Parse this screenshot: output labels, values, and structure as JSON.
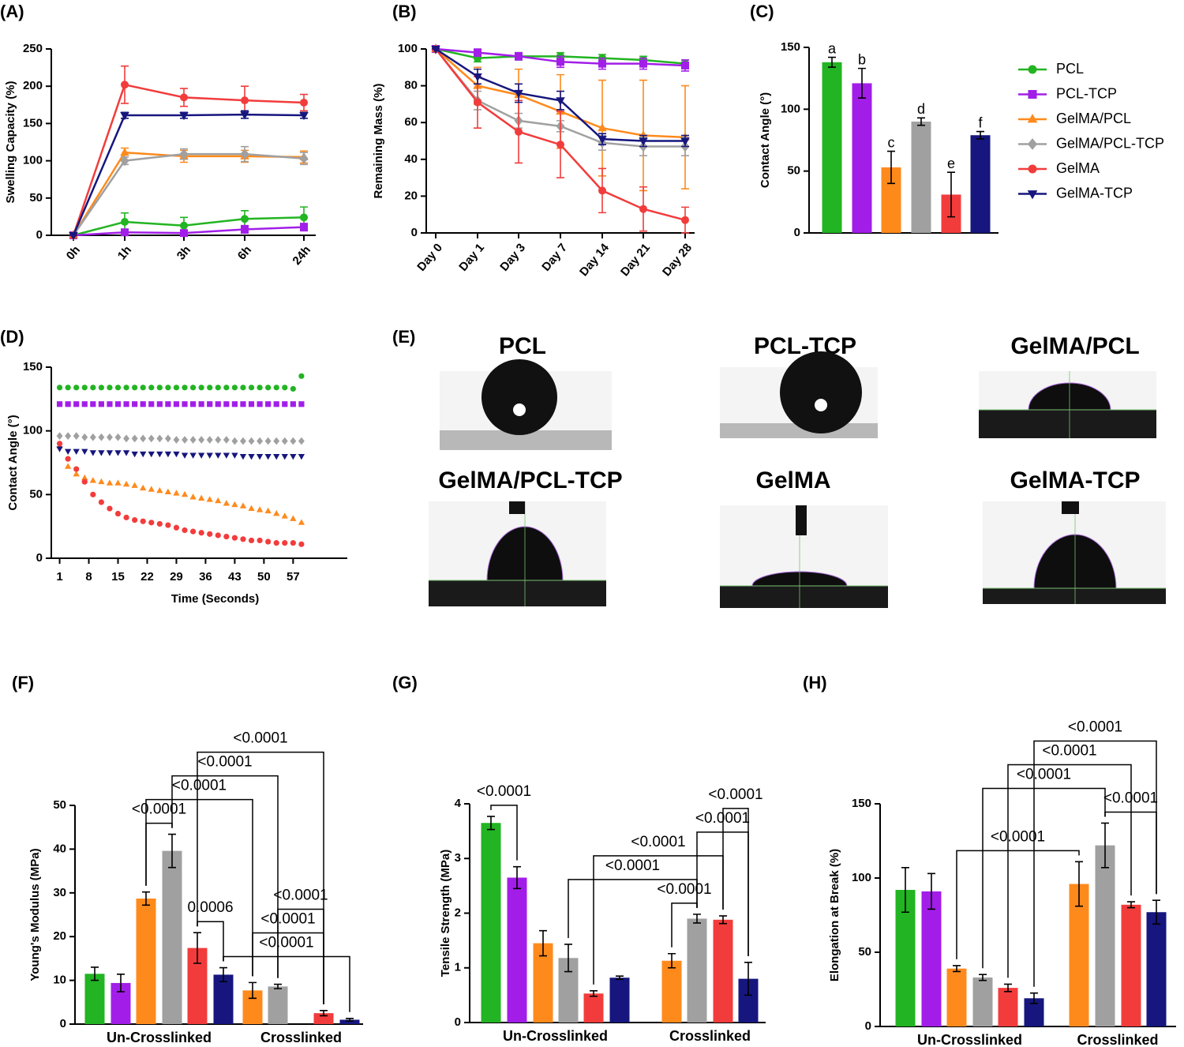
{
  "chart_data": [
    {
      "type": "line",
      "title": "(A)",
      "ylabel": "Swelling Capacity (%)",
      "categories": [
        "0h",
        "1h",
        "3h",
        "6h",
        "24h"
      ],
      "ylim": [
        0,
        250
      ],
      "yticks": [
        0,
        50,
        100,
        150,
        200,
        250
      ],
      "series": [
        {
          "name": "PCL",
          "color": "#22b422",
          "marker": "circle",
          "values": [
            0,
            18,
            13,
            22,
            24
          ],
          "errors": [
            0,
            12,
            11,
            11,
            14
          ]
        },
        {
          "name": "PCL-TCP",
          "color": "#a21ee8",
          "marker": "square",
          "values": [
            0,
            4,
            3,
            8,
            11
          ],
          "errors": [
            0,
            3,
            3,
            5,
            5
          ]
        },
        {
          "name": "GelMA/PCL",
          "color": "#ff8a1c",
          "marker": "triangle",
          "values": [
            0,
            111,
            106,
            106,
            105
          ],
          "errors": [
            0,
            6,
            8,
            8,
            8
          ]
        },
        {
          "name": "GelMA/PCL-TCP",
          "color": "#a0a0a0",
          "marker": "diamond",
          "values": [
            0,
            100,
            109,
            109,
            103
          ],
          "errors": [
            0,
            5,
            7,
            10,
            8
          ]
        },
        {
          "name": "GelMA",
          "color": "#f23c3c",
          "marker": "circle",
          "values": [
            0,
            202,
            185,
            181,
            178
          ],
          "errors": [
            0,
            25,
            12,
            19,
            11
          ]
        },
        {
          "name": "GelMA-TCP",
          "color": "#16167e",
          "marker": "triangle-down",
          "values": [
            0,
            161,
            161,
            162,
            161
          ],
          "errors": [
            0,
            4,
            4,
            5,
            4
          ]
        }
      ]
    },
    {
      "type": "line",
      "title": "(B)",
      "ylabel": "Remaining Mass (%)",
      "categories": [
        "Day 0",
        "Day 1",
        "Day 3",
        "Day 7",
        "Day 14",
        "Day 21",
        "Day 28"
      ],
      "ylim": [
        0,
        100
      ],
      "yticks": [
        0,
        20,
        40,
        60,
        80,
        100
      ],
      "series": [
        {
          "color": "#22b422",
          "marker": "circle",
          "values": [
            100,
            95,
            96,
            96,
            95,
            94,
            92
          ],
          "errors": [
            0,
            2,
            2,
            2,
            2,
            2,
            2
          ]
        },
        {
          "color": "#a21ee8",
          "marker": "square",
          "values": [
            100,
            98,
            96,
            93,
            92,
            92,
            91
          ],
          "errors": [
            0,
            2,
            2,
            3,
            3,
            3,
            3
          ]
        },
        {
          "color": "#ff8a1c",
          "marker": "triangle",
          "values": [
            100,
            80,
            75,
            66,
            57,
            53,
            52
          ],
          "errors": [
            0,
            10,
            14,
            20,
            26,
            30,
            28
          ]
        },
        {
          "color": "#a0a0a0",
          "marker": "diamond",
          "values": [
            100,
            72,
            61,
            58,
            49,
            47,
            47
          ],
          "errors": [
            0,
            5,
            4,
            3,
            4,
            5,
            5
          ]
        },
        {
          "color": "#f23c3c",
          "marker": "circle",
          "values": [
            100,
            71,
            55,
            48,
            23,
            13,
            7
          ],
          "errors": [
            0,
            14,
            17,
            18,
            12,
            12,
            7
          ]
        },
        {
          "color": "#16167e",
          "marker": "triangle-down",
          "values": [
            100,
            85,
            76,
            72,
            51,
            50,
            50
          ],
          "errors": [
            0,
            4,
            5,
            5,
            3,
            3,
            3
          ]
        }
      ]
    },
    {
      "type": "bar",
      "title": "(C)",
      "ylabel": "Contact Angle (°)",
      "ylim": [
        0,
        150
      ],
      "yticks": [
        0,
        50,
        100,
        150
      ],
      "values": [
        138,
        121,
        53,
        90,
        31,
        79
      ],
      "errors": [
        4,
        12,
        13,
        3,
        18,
        3
      ],
      "colors": [
        "#22b422",
        "#a21ee8",
        "#ff8a1c",
        "#a0a0a0",
        "#f23c3c",
        "#16167e"
      ],
      "annotations": [
        "a",
        "b",
        "c",
        "d",
        "e",
        "f"
      ]
    },
    {
      "type": "scatter",
      "title": "(D)",
      "ylabel": "Contact Angle (°)",
      "xlabel": "Time (Seconds)",
      "x": [
        1,
        3,
        5,
        7,
        9,
        11,
        13,
        15,
        17,
        19,
        21,
        23,
        25,
        27,
        29,
        31,
        33,
        35,
        37,
        39,
        41,
        43,
        45,
        47,
        49,
        51,
        53,
        55,
        57,
        59
      ],
      "xlim": [
        -1,
        70
      ],
      "xticks": [
        1,
        8,
        15,
        22,
        29,
        36,
        43,
        50,
        57
      ],
      "ylim": [
        0,
        150
      ],
      "yticks": [
        0,
        50,
        100,
        150
      ],
      "series": [
        {
          "color": "#22b422",
          "marker": "circle",
          "values": [
            134,
            134,
            134,
            134,
            134,
            134,
            134,
            134,
            134,
            134,
            134,
            134,
            134,
            134,
            134,
            134,
            134,
            134,
            134,
            134,
            134,
            134,
            134,
            134,
            134,
            134,
            134,
            134,
            133,
            143
          ]
        },
        {
          "color": "#a21ee8",
          "marker": "square",
          "values": [
            121,
            121,
            121,
            121,
            121,
            121,
            121,
            121,
            121,
            121,
            121,
            121,
            121,
            121,
            121,
            121,
            121,
            121,
            121,
            121,
            121,
            121,
            121,
            121,
            121,
            121,
            121,
            121,
            121,
            121
          ]
        },
        {
          "color": "#ff8a1c",
          "marker": "triangle",
          "values": [
            88,
            72,
            66,
            63,
            61,
            60,
            59,
            59,
            58,
            57,
            55,
            54,
            53,
            52,
            51,
            50,
            48,
            47,
            46,
            45,
            43,
            42,
            41,
            39,
            38,
            37,
            35,
            33,
            31,
            28
          ]
        },
        {
          "color": "#a0a0a0",
          "marker": "diamond",
          "values": [
            96,
            96,
            96,
            95,
            95,
            95,
            95,
            95,
            94,
            94,
            94,
            94,
            94,
            94,
            93,
            93,
            93,
            93,
            93,
            93,
            93,
            92,
            92,
            92,
            92,
            92,
            92,
            92,
            92,
            92
          ]
        },
        {
          "color": "#f23c3c",
          "marker": "circle",
          "values": [
            90,
            78,
            70,
            60,
            50,
            44,
            39,
            35,
            32,
            30,
            29,
            28,
            27,
            26,
            24,
            22,
            21,
            20,
            19,
            18,
            17,
            16,
            15,
            14,
            14,
            13,
            12,
            12,
            12,
            11
          ]
        },
        {
          "color": "#16167e",
          "marker": "triangle-down",
          "values": [
            86,
            84,
            84,
            84,
            83,
            83,
            83,
            83,
            83,
            82,
            82,
            82,
            82,
            82,
            82,
            81,
            81,
            81,
            81,
            81,
            81,
            81,
            80,
            80,
            80,
            80,
            80,
            80,
            80,
            80
          ]
        }
      ]
    },
    {
      "type": "grouped_bar",
      "title": "(F)",
      "ylabel": "Young's Modulus (MPa)",
      "categories": [
        "Un-Crosslinked",
        "Crosslinked"
      ],
      "ylim": [
        0,
        50
      ],
      "yticks": [
        0,
        10,
        20,
        30,
        40,
        50
      ],
      "series": [
        {
          "color": "#22b422",
          "values": [
            11.5,
            null
          ],
          "errors": [
            1.5,
            null
          ]
        },
        {
          "color": "#a21ee8",
          "values": [
            9.4,
            null
          ],
          "errors": [
            2,
            null
          ]
        },
        {
          "color": "#ff8a1c",
          "values": [
            28.7,
            7.7
          ],
          "errors": [
            1.5,
            1.8
          ]
        },
        {
          "color": "#a0a0a0",
          "values": [
            39.6,
            8.6
          ],
          "errors": [
            3.8,
            0.5
          ]
        },
        {
          "color": "#f23c3c",
          "values": [
            17.4,
            2.5
          ],
          "errors": [
            3.5,
            0.6
          ]
        },
        {
          "color": "#16167e",
          "values": [
            11.3,
            1.0
          ],
          "errors": [
            1.6,
            0.3
          ]
        }
      ],
      "comparisons": [
        {
          "label": "<0.0001",
          "from": [
            5,
            0
          ],
          "to": [
            5,
            1
          ]
        },
        {
          "label": "0.0006",
          "from": [
            4,
            0
          ],
          "to": [
            5,
            0
          ]
        },
        {
          "label": "<0.0001",
          "from": [
            2,
            1
          ],
          "to": [
            4,
            1
          ]
        },
        {
          "label": "<0.0001",
          "from": [
            3,
            1
          ],
          "to": [
            4,
            1
          ]
        },
        {
          "label": "<0.0001",
          "from": [
            2,
            0
          ],
          "to": [
            3,
            0
          ]
        },
        {
          "label": "<0.0001",
          "from": [
            2,
            0
          ],
          "to": [
            2,
            1
          ]
        },
        {
          "label": "<0.0001",
          "from": [
            3,
            0
          ],
          "to": [
            3,
            1
          ]
        },
        {
          "label": "<0.0001",
          "from": [
            4,
            0
          ],
          "to": [
            4,
            1
          ]
        }
      ]
    },
    {
      "type": "grouped_bar",
      "title": "(G)",
      "ylabel": "Tensile Strength (MPa)",
      "categories": [
        "Un-Crosslinked",
        "Crosslinked"
      ],
      "ylim": [
        0,
        4
      ],
      "yticks": [
        0,
        1,
        2,
        3,
        4
      ],
      "series": [
        {
          "color": "#22b422",
          "values": [
            3.65,
            null
          ],
          "errors": [
            0.12,
            null
          ]
        },
        {
          "color": "#a21ee8",
          "values": [
            2.65,
            null
          ],
          "errors": [
            0.2,
            null
          ]
        },
        {
          "color": "#ff8a1c",
          "values": [
            1.45,
            1.13
          ],
          "errors": [
            0.23,
            0.13
          ]
        },
        {
          "color": "#a0a0a0",
          "values": [
            1.18,
            1.9
          ],
          "errors": [
            0.25,
            0.08
          ]
        },
        {
          "color": "#f23c3c",
          "values": [
            0.53,
            1.88
          ],
          "errors": [
            0.05,
            0.07
          ]
        },
        {
          "color": "#16167e",
          "values": [
            0.82,
            0.8
          ],
          "errors": [
            0.03,
            0.3
          ]
        }
      ],
      "comparisons": [
        {
          "label": "<0.0001",
          "from": [
            2,
            1
          ],
          "to": [
            3,
            1
          ]
        },
        {
          "label": "<0.0001",
          "from": [
            3,
            0
          ],
          "to": [
            3,
            1
          ]
        },
        {
          "label": "<0.0001",
          "from": [
            4,
            0
          ],
          "to": [
            4,
            1
          ]
        },
        {
          "label": "<0.0001",
          "from": [
            3,
            1
          ],
          "to": [
            5,
            1
          ]
        },
        {
          "label": "<0.0001",
          "from": [
            4,
            1
          ],
          "to": [
            5,
            1
          ]
        },
        {
          "label": "<0.0001",
          "from": [
            0,
            0
          ],
          "to": [
            1,
            0
          ]
        }
      ]
    },
    {
      "type": "grouped_bar",
      "title": "(H)",
      "ylabel": "Elongation at Break (%)",
      "categories": [
        "Un-Crosslinked",
        "Crosslinked"
      ],
      "ylim": [
        0,
        150
      ],
      "yticks": [
        0,
        50,
        100,
        150
      ],
      "series": [
        {
          "color": "#22b422",
          "values": [
            92,
            null
          ],
          "errors": [
            15,
            null
          ]
        },
        {
          "color": "#a21ee8",
          "values": [
            91,
            null
          ],
          "errors": [
            12,
            null
          ]
        },
        {
          "color": "#ff8a1c",
          "values": [
            39,
            96
          ],
          "errors": [
            2,
            15
          ]
        },
        {
          "color": "#a0a0a0",
          "values": [
            33,
            122
          ],
          "errors": [
            2,
            15
          ]
        },
        {
          "color": "#f23c3c",
          "values": [
            26,
            82
          ],
          "errors": [
            2.5,
            2
          ]
        },
        {
          "color": "#16167e",
          "values": [
            19,
            77
          ],
          "errors": [
            3.5,
            8
          ]
        }
      ],
      "comparisons": [
        {
          "label": "<0.0001",
          "from": [
            3,
            1
          ],
          "to": [
            5,
            1
          ]
        },
        {
          "label": "<0.0001",
          "from": [
            2,
            0
          ],
          "to": [
            2,
            1
          ]
        },
        {
          "label": "<0.0001",
          "from": [
            3,
            0
          ],
          "to": [
            3,
            1
          ]
        },
        {
          "label": "<0.0001",
          "from": [
            4,
            0
          ],
          "to": [
            4,
            1
          ]
        },
        {
          "label": "<0.0001",
          "from": [
            5,
            0
          ],
          "to": [
            5,
            1
          ]
        }
      ]
    }
  ],
  "figure_e": {
    "title": "(E)",
    "panels": [
      "PCL",
      "PCL-TCP",
      "GelMA/PCL",
      "GelMA/PCL-TCP",
      "GelMA",
      "GelMA-TCP"
    ]
  }
}
